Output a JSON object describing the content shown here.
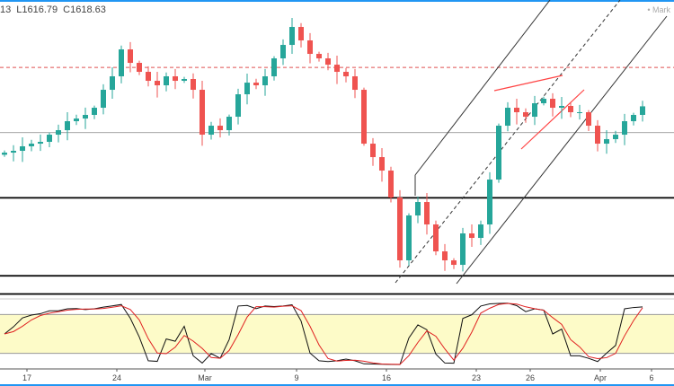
{
  "legend": {
    "partial": "13",
    "low": "L1616.79",
    "close": "C1618.63"
  },
  "watermark": "• Mark",
  "colors": {
    "up": "#26a69a",
    "down": "#ef5350",
    "accent": "#2196f3",
    "band": "#fdfbc8"
  },
  "chart_data": {
    "type": "candlestick",
    "title": "",
    "x_ticks": [
      "17",
      "24",
      "Mar",
      "9",
      "16",
      "23",
      "26",
      "Apr",
      "6"
    ],
    "closes": [
      1575.3,
      1577,
      1581.2,
      1583.7,
      1585.4,
      1592.1,
      1596.3,
      1604.7,
      1607.2,
      1610.6,
      1617.3,
      1634.1,
      1646.7,
      1671.9,
      1659.3,
      1650.9,
      1642.5,
      1638.3,
      1646.7,
      1642.5,
      1644.2,
      1634.1,
      1592.1,
      1600.5,
      1596.3,
      1608.9,
      1629.9,
      1640.8,
      1638.3,
      1646.7,
      1663.5,
      1676.1,
      1692.9,
      1680.3,
      1667.7,
      1663.5,
      1657.6,
      1650.9,
      1646.7,
      1634.1,
      1583.7,
      1571.1,
      1558.5,
      1533.3,
      1474.5,
      1516.5,
      1529.1,
      1508.1,
      1482.9,
      1474.5,
      1470.3,
      1499.7,
      1495.5,
      1508.1,
      1550.1,
      1600.5,
      1617.3,
      1613.1,
      1608.9,
      1621.5,
      1625.7,
      1617.3,
      1619,
      1613.1,
      1613.1,
      1600.5,
      1583.7,
      1587.9,
      1592.1,
      1604.7,
      1610.6,
      1618.63
    ],
    "levels": {
      "resistance_dashed": 1655,
      "mid_line": 1594,
      "support_1": 1533,
      "support_2": 1460,
      "support_3": 1443
    },
    "yrange": [
      1440,
      1720
    ],
    "stochastic": {
      "upper": 80,
      "lower": 20,
      "range": [
        0,
        100
      ]
    }
  }
}
